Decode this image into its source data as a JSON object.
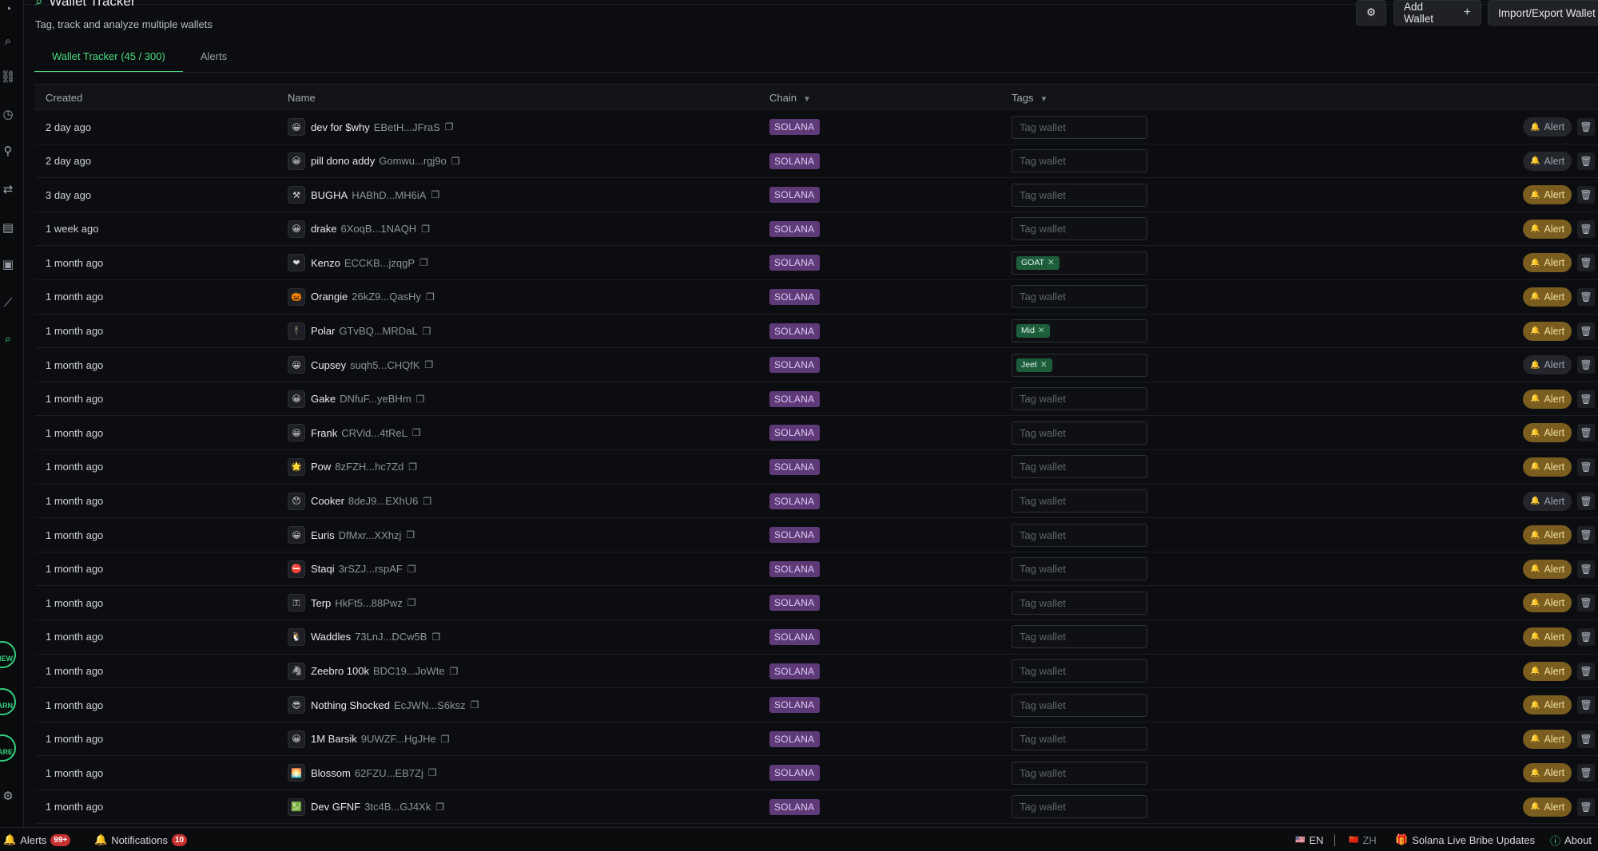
{
  "header": {
    "title": "Wallet Tracker",
    "subtitle": "Tag, track and analyze multiple wallets",
    "add_wallet_label": "Add Wallet",
    "import_export_label": "Import/Export Wallet"
  },
  "tabs": [
    {
      "label": "Wallet Tracker (45 / 300)",
      "active": true
    },
    {
      "label": "Alerts",
      "active": false
    }
  ],
  "sidebar": {
    "icons": [
      "search-icon",
      "link-icon",
      "history-icon",
      "pin-icon",
      "swap-icon",
      "folder-icon",
      "wallet-icon",
      "chart-icon",
      "wallet-tracker-icon"
    ],
    "promos": [
      "NEW",
      "EARN",
      "SHARE"
    ]
  },
  "table": {
    "headers": {
      "created": "Created",
      "name": "Name",
      "chain": "Chain",
      "tags": "Tags"
    },
    "tag_placeholder": "Tag wallet",
    "alert_label": "Alert",
    "rows": [
      {
        "created": "2 day ago",
        "emoji": "😀",
        "name": "dev for $why",
        "address": "EBetH...JFraS",
        "chain": "SOLANA",
        "tag": "",
        "alert_on": false
      },
      {
        "created": "2 day ago",
        "emoji": "😀",
        "name": "pill dono addy",
        "address": "Gomwu...rgj9o",
        "chain": "SOLANA",
        "tag": "",
        "alert_on": false
      },
      {
        "created": "3 day ago",
        "emoji": "⚒",
        "name": "BUGHA",
        "address": "HABhD...MH6iA",
        "chain": "SOLANA",
        "tag": "",
        "alert_on": true
      },
      {
        "created": "1 week ago",
        "emoji": "😀",
        "name": "drake",
        "address": "6XoqB...1NAQH",
        "chain": "SOLANA",
        "tag": "",
        "alert_on": true
      },
      {
        "created": "1 month ago",
        "emoji": "❤",
        "name": "Kenzo",
        "address": "ECCKB...jzqgP",
        "chain": "SOLANA",
        "tag": "GOAT",
        "alert_on": true
      },
      {
        "created": "1 month ago",
        "emoji": "🎃",
        "name": "Orangie",
        "address": "26kZ9...QasHy",
        "chain": "SOLANA",
        "tag": "",
        "alert_on": true
      },
      {
        "created": "1 month ago",
        "emoji": "🕴",
        "name": "Polar",
        "address": "GTvBQ...MRDaL",
        "chain": "SOLANA",
        "tag": "Mid",
        "alert_on": true
      },
      {
        "created": "1 month ago",
        "emoji": "😀",
        "name": "Cupsey",
        "address": "suqh5...CHQfK",
        "chain": "SOLANA",
        "tag": "Jeet",
        "alert_on": false
      },
      {
        "created": "1 month ago",
        "emoji": "😀",
        "name": "Gake",
        "address": "DNfuF...yeBHm",
        "chain": "SOLANA",
        "tag": "",
        "alert_on": true
      },
      {
        "created": "1 month ago",
        "emoji": "😀",
        "name": "Frank",
        "address": "CRVid...4tReL",
        "chain": "SOLANA",
        "tag": "",
        "alert_on": true
      },
      {
        "created": "1 month ago",
        "emoji": "🌟",
        "name": "Pow",
        "address": "8zFZH...hc7Zd",
        "chain": "SOLANA",
        "tag": "",
        "alert_on": true
      },
      {
        "created": "1 month ago",
        "emoji": "😯",
        "name": "Cooker",
        "address": "8deJ9...EXhU6",
        "chain": "SOLANA",
        "tag": "",
        "alert_on": false
      },
      {
        "created": "1 month ago",
        "emoji": "😀",
        "name": "Euris",
        "address": "DfMxr...XXhzj",
        "chain": "SOLANA",
        "tag": "",
        "alert_on": true
      },
      {
        "created": "1 month ago",
        "emoji": "⛔",
        "name": "Staqi",
        "address": "3rSZJ...rspAF",
        "chain": "SOLANA",
        "tag": "",
        "alert_on": true
      },
      {
        "created": "1 month ago",
        "emoji": "🇹",
        "name": "Terp",
        "address": "HkFt5...88Pwz",
        "chain": "SOLANA",
        "tag": "",
        "alert_on": true
      },
      {
        "created": "1 month ago",
        "emoji": "🐧",
        "name": "Waddles",
        "address": "73LnJ...DCw5B",
        "chain": "SOLANA",
        "tag": "",
        "alert_on": true
      },
      {
        "created": "1 month ago",
        "emoji": "🦓",
        "name": "Zeebro 100k",
        "address": "BDC19...JoWte",
        "chain": "SOLANA",
        "tag": "",
        "alert_on": true
      },
      {
        "created": "1 month ago",
        "emoji": "😎",
        "name": "Nothing Shocked",
        "address": "EcJWN...S6ksz",
        "chain": "SOLANA",
        "tag": "",
        "alert_on": true
      },
      {
        "created": "1 month ago",
        "emoji": "😀",
        "name": "1M Barsik",
        "address": "9UWZF...HgJHe",
        "chain": "SOLANA",
        "tag": "",
        "alert_on": true
      },
      {
        "created": "1 month ago",
        "emoji": "🌅",
        "name": "Blossom",
        "address": "62FZU...EB7Zj",
        "chain": "SOLANA",
        "tag": "",
        "alert_on": true
      },
      {
        "created": "1 month ago",
        "emoji": "💹",
        "name": "Dev GFNF",
        "address": "3tc4B...GJ4Xk",
        "chain": "SOLANA",
        "tag": "",
        "alert_on": true
      }
    ]
  },
  "footer": {
    "alerts_label": "Alerts",
    "alerts_badge": "99+",
    "notifications_label": "Notifications",
    "notifications_badge": "10",
    "lang_en": "EN",
    "lang_zh": "ZH",
    "bribe_label": "Solana Live Bribe Updates",
    "about_label": "About"
  },
  "colors": {
    "accent": "#4ade80",
    "chain_badge": "#5e3a78",
    "alert_active": "#7a5d1f",
    "tag_chip": "#1e5d3c"
  }
}
